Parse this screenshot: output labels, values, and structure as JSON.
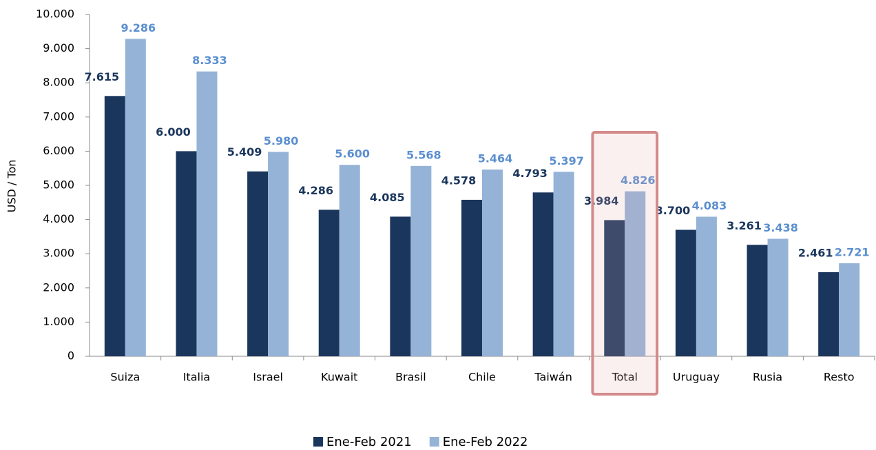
{
  "chart_data": {
    "type": "bar",
    "ylabel": "USD / Ton",
    "categories": [
      "Suiza",
      "Italia",
      "Israel",
      "Kuwait",
      "Brasil",
      "Chile",
      "Taiwán",
      "Total",
      "Uruguay",
      "Rusia",
      "Resto"
    ],
    "series": [
      {
        "name": "Ene-Feb 2021",
        "color": "#1b365d",
        "values": [
          7615,
          6000,
          5409,
          4286,
          4085,
          4578,
          4793,
          3984,
          3700,
          3261,
          2461
        ],
        "value_labels": [
          "7.615",
          "6.000",
          "5.409",
          "4.286",
          "4.085",
          "4.578",
          "4.793",
          "3.984",
          "3.700",
          "3.261",
          "2.461"
        ]
      },
      {
        "name": "Ene-Feb 2022",
        "color": "#94b3d7",
        "values": [
          9286,
          8333,
          5980,
          5600,
          5568,
          5464,
          5397,
          4826,
          4083,
          3438,
          2721
        ],
        "value_labels": [
          "9.286",
          "8.333",
          "5.980",
          "5.600",
          "5.568",
          "5.464",
          "5.397",
          "4.826",
          "4.083",
          "3.438",
          "2.721"
        ]
      }
    ],
    "ylim": [
      0,
      10000
    ],
    "yticks": [
      0,
      {
        "value": 1000,
        "label": "1.000"
      },
      {
        "value": 2000,
        "label": "2.000"
      },
      {
        "value": 3000,
        "label": "3.000"
      },
      {
        "value": 4000,
        "label": "4.000"
      },
      {
        "value": 5000,
        "label": "5.000"
      },
      {
        "value": 6000,
        "label": "6.000"
      },
      {
        "value": 7000,
        "label": "7.000"
      },
      {
        "value": 8000,
        "label": "8.000"
      },
      {
        "value": 9000,
        "label": "9.000"
      },
      {
        "value": 10000,
        "label": "10.000"
      }
    ],
    "highlight_index": 7,
    "legend": "bottom"
  }
}
